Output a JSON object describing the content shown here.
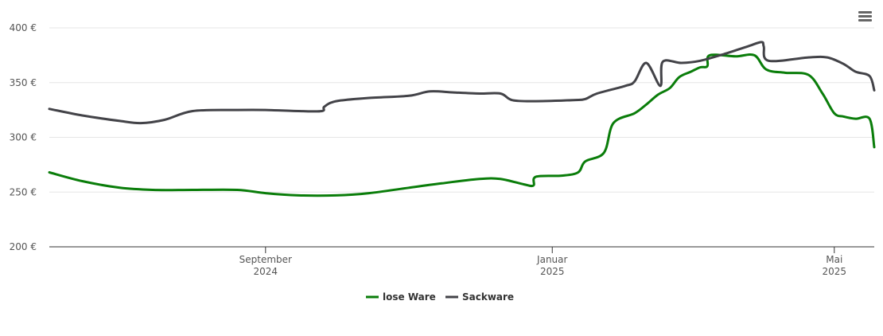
{
  "chart_data": {
    "type": "line",
    "title": "",
    "xlabel": "",
    "ylabel": "",
    "ylim": [
      200,
      400
    ],
    "yticks": [
      "200 €",
      "250 €",
      "300 €",
      "350 €",
      "400 €"
    ],
    "ytick_values": [
      200,
      250,
      300,
      350,
      400
    ],
    "xlim": [
      "2024-06-01",
      "2025-05-18"
    ],
    "xticks": [
      {
        "date": "2024-09-01",
        "line1": "September",
        "line2": "2024"
      },
      {
        "date": "2025-01-01",
        "line1": "Januar",
        "line2": "2025"
      },
      {
        "date": "2025-05-01",
        "line1": "Mai",
        "line2": "2025"
      }
    ],
    "grid": "horizontal",
    "legend_position": "bottom-center",
    "series": [
      {
        "name": "lose Ware",
        "color": "#0a7d0a",
        "points": [
          [
            "2024-06-01",
            268
          ],
          [
            "2024-06-15",
            260
          ],
          [
            "2024-07-01",
            254
          ],
          [
            "2024-07-15",
            252
          ],
          [
            "2024-08-01",
            252
          ],
          [
            "2024-08-20",
            252
          ],
          [
            "2024-09-01",
            249
          ],
          [
            "2024-09-15",
            247
          ],
          [
            "2024-10-01",
            247
          ],
          [
            "2024-10-15",
            249
          ],
          [
            "2024-11-01",
            254
          ],
          [
            "2024-11-15",
            258
          ],
          [
            "2024-12-01",
            262
          ],
          [
            "2024-12-10",
            262
          ],
          [
            "2024-12-20",
            257
          ],
          [
            "2024-12-24",
            256
          ],
          [
            "2024-12-25",
            264
          ],
          [
            "2025-01-05",
            265
          ],
          [
            "2025-01-12",
            268
          ],
          [
            "2025-01-15",
            278
          ],
          [
            "2025-01-23",
            286
          ],
          [
            "2025-01-27",
            313
          ],
          [
            "2025-02-05",
            322
          ],
          [
            "2025-02-10",
            330
          ],
          [
            "2025-02-15",
            339
          ],
          [
            "2025-02-20",
            345
          ],
          [
            "2025-02-24",
            355
          ],
          [
            "2025-03-01",
            360
          ],
          [
            "2025-03-05",
            364
          ],
          [
            "2025-03-08",
            365
          ],
          [
            "2025-03-09",
            375
          ],
          [
            "2025-03-20",
            374
          ],
          [
            "2025-03-28",
            375
          ],
          [
            "2025-04-02",
            362
          ],
          [
            "2025-04-10",
            359
          ],
          [
            "2025-04-20",
            357
          ],
          [
            "2025-04-26",
            340
          ],
          [
            "2025-05-01",
            322
          ],
          [
            "2025-05-05",
            319
          ],
          [
            "2025-05-10",
            317
          ],
          [
            "2025-05-16",
            317
          ],
          [
            "2025-05-18",
            291
          ]
        ]
      },
      {
        "name": "Sackware",
        "color": "#434348",
        "points": [
          [
            "2024-06-01",
            326
          ],
          [
            "2024-06-15",
            320
          ],
          [
            "2024-07-01",
            315
          ],
          [
            "2024-07-10",
            313
          ],
          [
            "2024-07-20",
            316
          ],
          [
            "2024-08-01",
            324
          ],
          [
            "2024-08-20",
            325
          ],
          [
            "2024-09-01",
            325
          ],
          [
            "2024-09-15",
            324
          ],
          [
            "2024-09-25",
            324
          ],
          [
            "2024-09-26",
            328
          ],
          [
            "2024-10-01",
            333
          ],
          [
            "2024-10-15",
            336
          ],
          [
            "2024-11-01",
            338
          ],
          [
            "2024-11-10",
            342
          ],
          [
            "2024-11-20",
            341
          ],
          [
            "2024-12-01",
            340
          ],
          [
            "2024-12-10",
            340
          ],
          [
            "2024-12-15",
            334
          ],
          [
            "2024-12-25",
            333
          ],
          [
            "2025-01-10",
            334
          ],
          [
            "2025-01-15",
            335
          ],
          [
            "2025-01-20",
            340
          ],
          [
            "2025-02-01",
            347
          ],
          [
            "2025-02-05",
            351
          ],
          [
            "2025-02-10",
            368
          ],
          [
            "2025-02-16",
            347
          ],
          [
            "2025-02-17",
            369
          ],
          [
            "2025-02-25",
            368
          ],
          [
            "2025-03-05",
            370
          ],
          [
            "2025-03-15",
            376
          ],
          [
            "2025-03-25",
            383
          ],
          [
            "2025-03-31",
            387
          ],
          [
            "2025-04-01",
            383
          ],
          [
            "2025-04-03",
            370
          ],
          [
            "2025-04-20",
            373
          ],
          [
            "2025-04-28",
            373
          ],
          [
            "2025-05-05",
            367
          ],
          [
            "2025-05-10",
            360
          ],
          [
            "2025-05-16",
            356
          ],
          [
            "2025-05-18",
            343
          ]
        ]
      }
    ]
  },
  "toolbar": {
    "menu_icon": "hamburger-menu-icon"
  }
}
